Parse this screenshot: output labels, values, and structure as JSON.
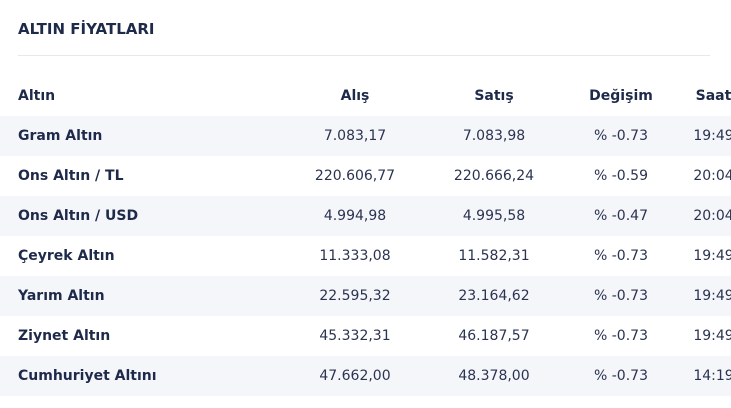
{
  "widget": {
    "title": "ALTIN FİYATLARI"
  },
  "table": {
    "headers": {
      "name": "Altın",
      "buy": "Alış",
      "sell": "Satış",
      "change": "Değişim",
      "time": "Saat"
    },
    "rows": [
      {
        "name": "Gram Altın",
        "buy": "7.083,17",
        "sell": "7.083,98",
        "change": "% -0.73",
        "time": "19:49"
      },
      {
        "name": "Ons Altın / TL",
        "buy": "220.606,77",
        "sell": "220.666,24",
        "change": "% -0.59",
        "time": "20:04"
      },
      {
        "name": "Ons Altın / USD",
        "buy": "4.994,98",
        "sell": "4.995,58",
        "change": "% -0.47",
        "time": "20:04"
      },
      {
        "name": "Çeyrek Altın",
        "buy": "11.333,08",
        "sell": "11.582,31",
        "change": "% -0.73",
        "time": "19:49"
      },
      {
        "name": "Yarım Altın",
        "buy": "22.595,32",
        "sell": "23.164,62",
        "change": "% -0.73",
        "time": "19:49"
      },
      {
        "name": "Ziynet Altın",
        "buy": "45.332,31",
        "sell": "46.187,57",
        "change": "% -0.73",
        "time": "19:49"
      },
      {
        "name": "Cumhuriyet Altını",
        "buy": "47.662,00",
        "sell": "48.378,00",
        "change": "% -0.73",
        "time": "14:19"
      }
    ]
  },
  "colors": {
    "text": "#1e2a4a",
    "row_stripe": "#f5f6fa",
    "divider": "#e6e8ed"
  }
}
